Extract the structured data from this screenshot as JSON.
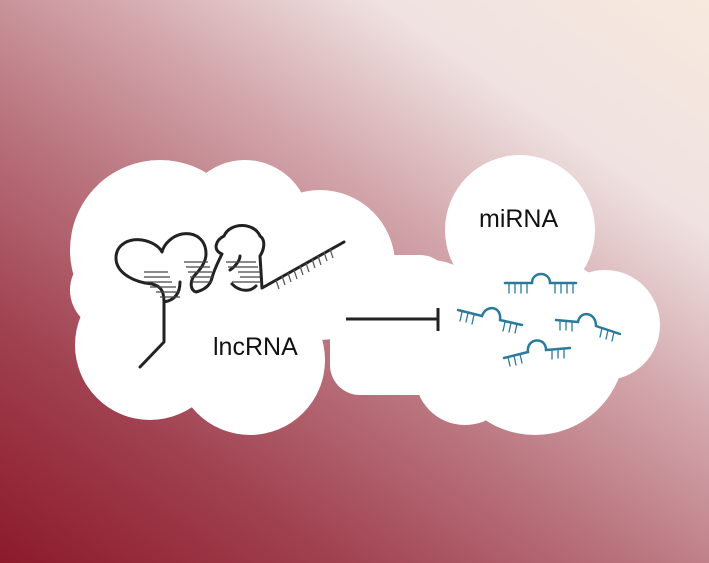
{
  "lncrna": {
    "label": "lncRNA"
  },
  "mirna": {
    "label": "miRNA"
  },
  "colors": {
    "background_dark": "#8c1a2b",
    "background_light": "#f7e9dd",
    "cloud": "#ffffff",
    "lncrna_stroke": "#222222",
    "mirna_stroke": "#2b7a99",
    "inhibition_arrow": "#222222"
  },
  "relationship": "inhibition"
}
